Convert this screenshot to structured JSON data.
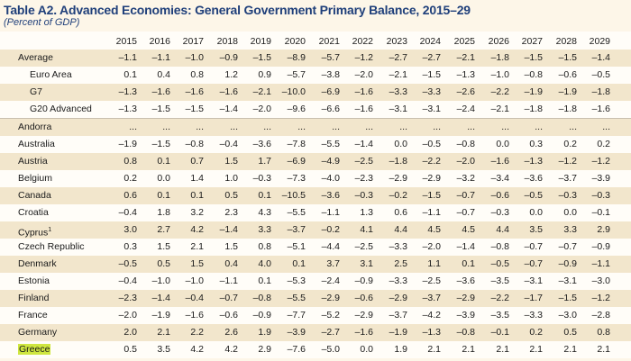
{
  "title": "Table A2. Advanced Economies: General Government Primary Balance, 2015–29",
  "subtitle": "(Percent of GDP)",
  "years": [
    "2015",
    "2016",
    "2017",
    "2018",
    "2019",
    "2020",
    "2021",
    "2022",
    "2023",
    "2024",
    "2025",
    "2026",
    "2027",
    "2028",
    "2029"
  ],
  "rows": [
    {
      "label": "Average",
      "indent": false,
      "values": [
        "–1.1",
        "–1.1",
        "–1.0",
        "–0.9",
        "–1.5",
        "–8.9",
        "–5.7",
        "–1.2",
        "–2.7",
        "–2.7",
        "–2.1",
        "–1.8",
        "–1.5",
        "–1.5",
        "–1.4"
      ]
    },
    {
      "label": "Euro Area",
      "indent": true,
      "values": [
        "0.1",
        "0.4",
        "0.8",
        "1.2",
        "0.9",
        "–5.7",
        "–3.8",
        "–2.0",
        "–2.1",
        "–1.5",
        "–1.3",
        "–1.0",
        "–0.8",
        "–0.6",
        "–0.5"
      ]
    },
    {
      "label": "G7",
      "indent": true,
      "values": [
        "–1.3",
        "–1.6",
        "–1.6",
        "–1.6",
        "–2.1",
        "–10.0",
        "–6.9",
        "–1.6",
        "–3.3",
        "–3.3",
        "–2.6",
        "–2.2",
        "–1.9",
        "–1.9",
        "–1.8"
      ]
    },
    {
      "label": "G20 Advanced",
      "indent": true,
      "values": [
        "–1.3",
        "–1.5",
        "–1.5",
        "–1.4",
        "–2.0",
        "–9.6",
        "–6.6",
        "–1.6",
        "–3.1",
        "–3.1",
        "–2.4",
        "–2.1",
        "–1.8",
        "–1.8",
        "–1.6"
      ]
    },
    {
      "label": "Andorra",
      "indent": false,
      "values": [
        "...",
        "...",
        "...",
        "...",
        "...",
        "...",
        "...",
        "...",
        "...",
        "...",
        "...",
        "...",
        "...",
        "...",
        "..."
      ]
    },
    {
      "label": "Australia",
      "indent": false,
      "values": [
        "–1.9",
        "–1.5",
        "–0.8",
        "–0.4",
        "–3.6",
        "–7.8",
        "–5.5",
        "–1.4",
        "0.0",
        "–0.5",
        "–0.8",
        "0.0",
        "0.3",
        "0.2",
        "0.2"
      ]
    },
    {
      "label": "Austria",
      "indent": false,
      "values": [
        "0.8",
        "0.1",
        "0.7",
        "1.5",
        "1.7",
        "–6.9",
        "–4.9",
        "–2.5",
        "–1.8",
        "–2.2",
        "–2.0",
        "–1.6",
        "–1.3",
        "–1.2",
        "–1.2"
      ]
    },
    {
      "label": "Belgium",
      "indent": false,
      "values": [
        "0.2",
        "0.0",
        "1.4",
        "1.0",
        "–0.3",
        "–7.3",
        "–4.0",
        "–2.3",
        "–2.9",
        "–2.9",
        "–3.2",
        "–3.4",
        "–3.6",
        "–3.7",
        "–3.9"
      ]
    },
    {
      "label": "Canada",
      "indent": false,
      "values": [
        "0.6",
        "0.1",
        "0.1",
        "0.5",
        "0.1",
        "–10.5",
        "–3.6",
        "–0.3",
        "–0.2",
        "–1.5",
        "–0.7",
        "–0.6",
        "–0.5",
        "–0.3",
        "–0.3"
      ]
    },
    {
      "label": "Croatia",
      "indent": false,
      "values": [
        "–0.4",
        "1.8",
        "3.2",
        "2.3",
        "4.3",
        "–5.5",
        "–1.1",
        "1.3",
        "0.6",
        "–1.1",
        "–0.7",
        "–0.3",
        "0.0",
        "0.0",
        "–0.1"
      ]
    },
    {
      "label": "Cyprus",
      "sup": "1",
      "indent": false,
      "values": [
        "3.0",
        "2.7",
        "4.2",
        "–1.4",
        "3.3",
        "–3.7",
        "–0.2",
        "4.1",
        "4.4",
        "4.5",
        "4.5",
        "4.4",
        "3.5",
        "3.3",
        "2.9"
      ]
    },
    {
      "label": "Czech Republic",
      "indent": false,
      "values": [
        "0.3",
        "1.5",
        "2.1",
        "1.5",
        "0.8",
        "–5.1",
        "–4.4",
        "–2.5",
        "–3.3",
        "–2.0",
        "–1.4",
        "–0.8",
        "–0.7",
        "–0.7",
        "–0.9"
      ]
    },
    {
      "label": "Denmark",
      "indent": false,
      "values": [
        "–0.5",
        "0.5",
        "1.5",
        "0.4",
        "4.0",
        "0.1",
        "3.7",
        "3.1",
        "2.5",
        "1.1",
        "0.1",
        "–0.5",
        "–0.7",
        "–0.9",
        "–1.1"
      ]
    },
    {
      "label": "Estonia",
      "indent": false,
      "values": [
        "–0.4",
        "–1.0",
        "–1.0",
        "–1.1",
        "0.1",
        "–5.3",
        "–2.4",
        "–0.9",
        "–3.3",
        "–2.5",
        "–3.6",
        "–3.5",
        "–3.1",
        "–3.1",
        "–3.0"
      ]
    },
    {
      "label": "Finland",
      "indent": false,
      "values": [
        "–2.3",
        "–1.4",
        "–0.4",
        "–0.7",
        "–0.8",
        "–5.5",
        "–2.9",
        "–0.6",
        "–2.9",
        "–3.7",
        "–2.9",
        "–2.2",
        "–1.7",
        "–1.5",
        "–1.2"
      ]
    },
    {
      "label": "France",
      "indent": false,
      "values": [
        "–2.0",
        "–1.9",
        "–1.6",
        "–0.6",
        "–0.9",
        "–7.7",
        "–5.2",
        "–2.9",
        "–3.7",
        "–4.2",
        "–3.9",
        "–3.5",
        "–3.3",
        "–3.0",
        "–2.8"
      ]
    },
    {
      "label": "Germany",
      "indent": false,
      "values": [
        "2.0",
        "2.1",
        "2.2",
        "2.6",
        "1.9",
        "–3.9",
        "–2.7",
        "–1.6",
        "–1.9",
        "–1.3",
        "–0.8",
        "–0.1",
        "0.2",
        "0.5",
        "0.8"
      ]
    },
    {
      "label": "Greece",
      "indent": false,
      "highlight": true,
      "values": [
        "0.5",
        "3.5",
        "4.2",
        "4.2",
        "2.9",
        "–7.6",
        "–5.0",
        "0.0",
        "1.9",
        "2.1",
        "2.1",
        "2.1",
        "2.1",
        "2.1",
        "2.1"
      ]
    }
  ],
  "colors": {
    "title": "#1f3f7a",
    "shade": "#f2e6cc",
    "highlight": "#cfe640"
  }
}
